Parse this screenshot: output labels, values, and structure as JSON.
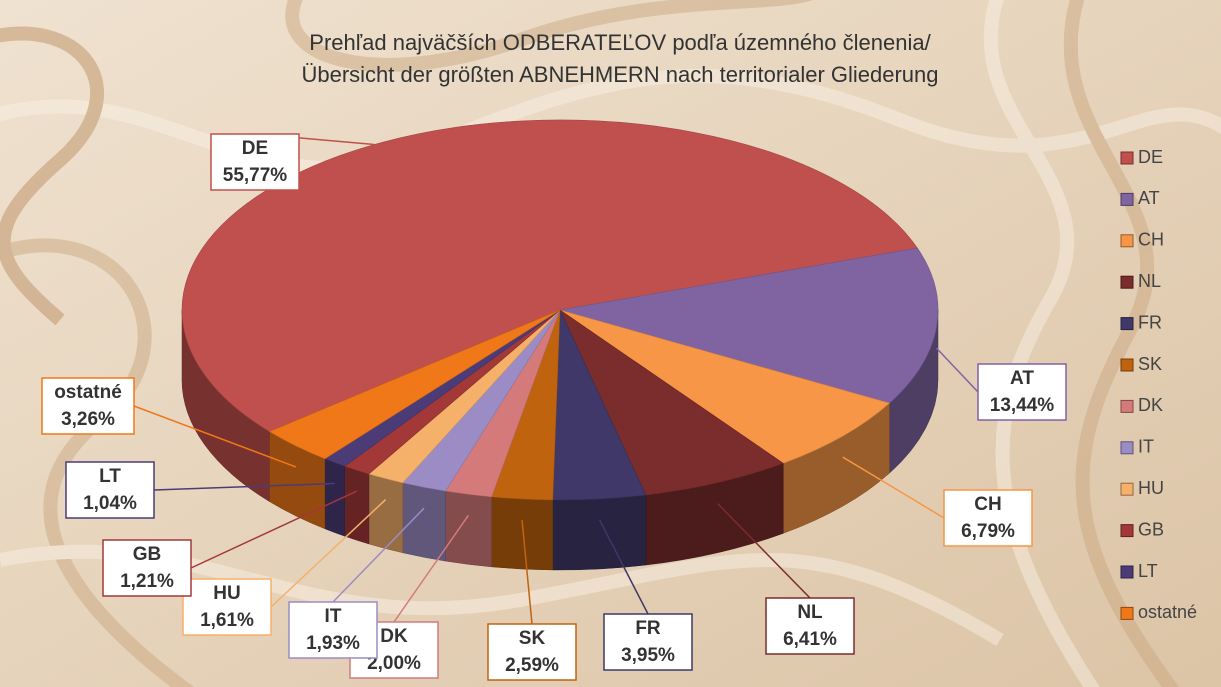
{
  "chart_data": {
    "type": "pie",
    "title": [
      "Prehľad najväčších ODBERATEĽOV podľa územného členenia/",
      "Übersicht der größten ABNEHMERN nach territorialer Gliederung"
    ],
    "categories": [
      "DE",
      "AT",
      "CH",
      "NL",
      "FR",
      "SK",
      "DK",
      "IT",
      "HU",
      "GB",
      "LT",
      "ostatné"
    ],
    "values": [
      55.77,
      13.44,
      6.79,
      6.41,
      3.95,
      2.59,
      2.0,
      1.93,
      1.61,
      1.21,
      1.04,
      3.26
    ],
    "value_labels": [
      "55,77%",
      "13,44%",
      "6,79%",
      "6,41%",
      "3,95%",
      "2,59%",
      "2,00%",
      "1,93%",
      "1,61%",
      "1,21%",
      "1,04%",
      "3,26%"
    ],
    "colors": [
      "#c0504d",
      "#8064a2",
      "#f79646",
      "#7b2c2c",
      "#3f3868",
      "#c0630f",
      "#d57a7a",
      "#9c8cc6",
      "#f5b06a",
      "#a33838",
      "#4b3c78",
      "#f07818"
    ],
    "legend": "right"
  }
}
